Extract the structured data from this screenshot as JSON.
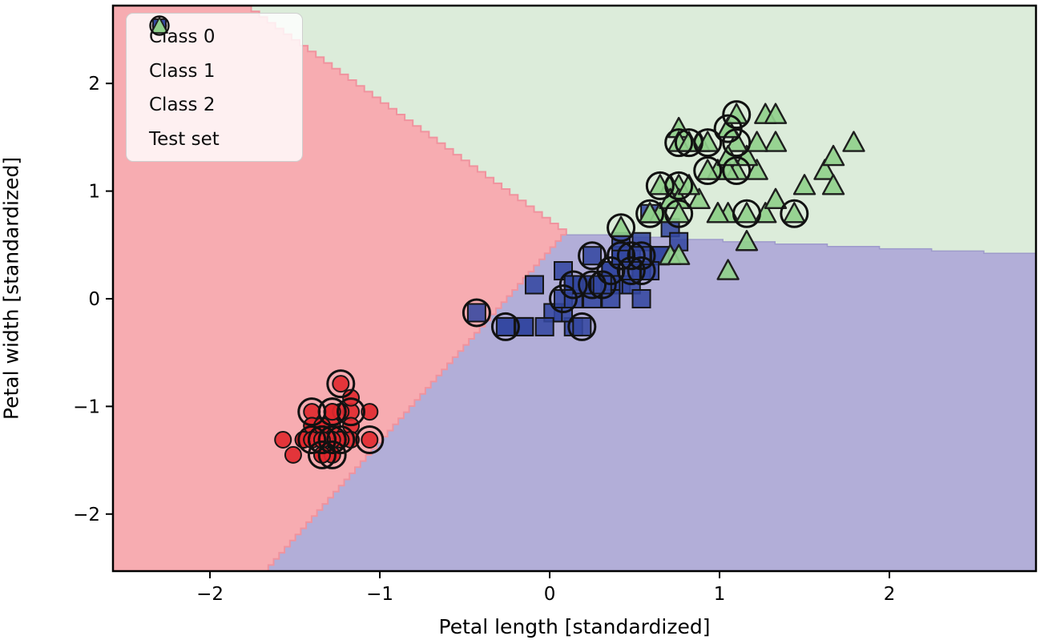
{
  "figure": {
    "xlabel": "Petal length [standardized]",
    "ylabel": "Petal width [standardized]"
  },
  "legend": {
    "items": [
      {
        "label": "Class 0",
        "marker": "circle",
        "color": "#e0282e"
      },
      {
        "label": "Class 1",
        "marker": "square",
        "color": "#3448a0"
      },
      {
        "label": "Class 2",
        "marker": "triangle",
        "color": "#90d08c"
      },
      {
        "label": "Test set",
        "marker": "open-circle",
        "color": "#111111"
      }
    ]
  },
  "chart_data": {
    "type": "scatter",
    "title": "",
    "xlabel": "Petal length [standardized]",
    "ylabel": "Petal width [standardized]",
    "xlim": [
      -2.571,
      2.863
    ],
    "ylim": [
      -2.53,
      2.723
    ],
    "xticks": [
      -2,
      -1,
      0,
      1,
      2
    ],
    "yticks": [
      -2,
      -1,
      0,
      1,
      2
    ],
    "xtick_labels": [
      "−2",
      "−1",
      "0",
      "1",
      "2"
    ],
    "ytick_labels": [
      "−2",
      "−1",
      "0",
      "1",
      "2"
    ],
    "grid": false,
    "legend_position": "upper left",
    "decision_regions": {
      "triple_point": [
        0.098,
        0.593
      ],
      "red_green_top_crossing": [
        -1.805,
        2.723
      ],
      "red_blue_bottom_crossing": [
        -1.657,
        -2.53
      ],
      "green_blue_right_crossing": [
        2.863,
        0.4
      ],
      "region_colors": {
        "class0": "#f7acb1",
        "class1": "#b2aed8",
        "class2": "#dcecda"
      },
      "edge_colors": {
        "red_edge": "#f0939e",
        "green_blue_edge": "#9e9bcb"
      }
    },
    "marker_style": {
      "class0": {
        "shape": "circle",
        "fill": "#e0282e",
        "edge": "#151515",
        "radius": 10
      },
      "class1": {
        "shape": "square",
        "fill": "#3448a0",
        "edge": "#151515",
        "half": 11
      },
      "class2": {
        "shape": "triangle",
        "fill": "#90d08c",
        "edge": "#1e1e1e",
        "half": 13
      },
      "test_ring": {
        "radius": 16.5,
        "stroke": "#111111",
        "stroke_width": 3
      }
    },
    "series": [
      {
        "name": "Class 0",
        "points": [
          [
            -1.34,
            -1.31,
            1
          ],
          [
            -1.34,
            -1.31,
            1
          ],
          [
            -1.4,
            -1.31,
            1
          ],
          [
            -1.28,
            -1.31,
            1
          ],
          [
            -1.34,
            -1.31,
            1
          ],
          [
            -1.17,
            -1.05,
            1
          ],
          [
            -1.34,
            -1.18,
            0
          ],
          [
            -1.28,
            -1.31,
            1
          ],
          [
            -1.34,
            -1.31,
            0
          ],
          [
            -1.28,
            -1.45,
            1
          ],
          [
            -1.28,
            -1.31,
            0
          ],
          [
            -1.23,
            -1.31,
            1
          ],
          [
            -1.34,
            -1.45,
            1
          ],
          [
            -1.51,
            -1.45,
            0
          ],
          [
            -1.45,
            -1.31,
            0
          ],
          [
            -1.28,
            -1.05,
            1
          ],
          [
            -1.4,
            -1.05,
            1
          ],
          [
            -1.34,
            -1.18,
            0
          ],
          [
            -1.17,
            -1.18,
            0
          ],
          [
            -1.28,
            -1.18,
            0
          ],
          [
            -1.17,
            -1.31,
            0
          ],
          [
            -1.28,
            -1.05,
            1
          ],
          [
            -1.57,
            -1.31,
            0
          ],
          [
            -1.17,
            -0.92,
            0
          ],
          [
            -1.06,
            -1.31,
            1
          ],
          [
            -1.23,
            -1.31,
            0
          ],
          [
            -1.23,
            -1.05,
            0
          ],
          [
            -1.28,
            -1.31,
            0
          ],
          [
            -1.34,
            -1.31,
            0
          ],
          [
            -1.23,
            -1.31,
            0
          ],
          [
            -1.23,
            -1.31,
            0
          ],
          [
            -1.28,
            -1.05,
            0
          ],
          [
            -1.28,
            -1.45,
            0
          ],
          [
            -1.34,
            -1.31,
            0
          ],
          [
            -1.28,
            -1.31,
            0
          ],
          [
            -1.45,
            -1.31,
            0
          ],
          [
            -1.4,
            -1.31,
            0
          ],
          [
            -1.34,
            -1.45,
            0
          ],
          [
            -1.4,
            -1.31,
            0
          ],
          [
            -1.28,
            -1.31,
            0
          ],
          [
            -1.4,
            -1.18,
            0
          ],
          [
            -1.4,
            -1.18,
            0
          ],
          [
            -1.4,
            -1.31,
            0
          ],
          [
            -1.23,
            -0.79,
            1
          ],
          [
            -1.06,
            -1.05,
            0
          ],
          [
            -1.34,
            -1.18,
            0
          ],
          [
            -1.23,
            -1.31,
            0
          ],
          [
            -1.34,
            -1.31,
            0
          ],
          [
            -1.28,
            -1.31,
            0
          ],
          [
            -1.34,
            -1.31,
            0
          ]
        ]
      },
      {
        "name": "Class 1",
        "points": [
          [
            0.54,
            0.26,
            1
          ],
          [
            0.42,
            0.4,
            1
          ],
          [
            0.65,
            0.4,
            0
          ],
          [
            0.14,
            0.13,
            1
          ],
          [
            0.48,
            0.4,
            1
          ],
          [
            0.42,
            0.13,
            0
          ],
          [
            0.54,
            0.53,
            0
          ],
          [
            -0.26,
            -0.26,
            1
          ],
          [
            0.48,
            0.13,
            0
          ],
          [
            0.08,
            0.26,
            0
          ],
          [
            -0.15,
            -0.26,
            0
          ],
          [
            0.25,
            0.4,
            1
          ],
          [
            0.14,
            -0.26,
            0
          ],
          [
            0.54,
            0.26,
            0
          ],
          [
            -0.09,
            0.13,
            0
          ],
          [
            0.36,
            0.26,
            0
          ],
          [
            0.42,
            0.4,
            1
          ],
          [
            0.19,
            -0.26,
            1
          ],
          [
            0.42,
            0.4,
            0
          ],
          [
            0.08,
            -0.13,
            0
          ],
          [
            0.59,
            0.79,
            0
          ],
          [
            0.14,
            0.13,
            0
          ],
          [
            0.65,
            0.4,
            0
          ],
          [
            0.54,
            0.0,
            0
          ],
          [
            0.31,
            0.13,
            1
          ],
          [
            0.36,
            0.26,
            1
          ],
          [
            0.59,
            0.26,
            0
          ],
          [
            0.71,
            0.66,
            0
          ],
          [
            0.42,
            0.4,
            0
          ],
          [
            -0.15,
            -0.26,
            0
          ],
          [
            0.02,
            -0.13,
            0
          ],
          [
            -0.03,
            -0.26,
            0
          ],
          [
            0.08,
            0.0,
            1
          ],
          [
            0.76,
            0.53,
            0
          ],
          [
            0.42,
            0.4,
            0
          ],
          [
            0.42,
            0.53,
            0
          ],
          [
            0.54,
            0.4,
            1
          ],
          [
            0.36,
            0.13,
            0
          ],
          [
            0.19,
            0.13,
            0
          ],
          [
            0.14,
            0.13,
            0
          ],
          [
            0.36,
            0.0,
            0
          ],
          [
            0.48,
            0.26,
            1
          ],
          [
            0.14,
            0.0,
            0
          ],
          [
            -0.26,
            -0.26,
            0
          ],
          [
            0.25,
            0.13,
            1
          ],
          [
            0.25,
            0.0,
            0
          ],
          [
            0.25,
            0.13,
            0
          ],
          [
            0.31,
            0.13,
            0
          ],
          [
            -0.43,
            -0.13,
            1
          ],
          [
            0.19,
            0.13,
            0
          ]
        ]
      },
      {
        "name": "Class 2",
        "points": [
          [
            1.27,
            1.71,
            0
          ],
          [
            0.76,
            0.92,
            0
          ],
          [
            1.22,
            1.19,
            0
          ],
          [
            1.05,
            0.79,
            0
          ],
          [
            1.16,
            1.32,
            0
          ],
          [
            1.62,
            1.19,
            0
          ],
          [
            0.42,
            0.66,
            1
          ],
          [
            1.44,
            0.79,
            1
          ],
          [
            1.16,
            0.79,
            1
          ],
          [
            1.33,
            1.71,
            0
          ],
          [
            0.76,
            1.05,
            1
          ],
          [
            0.88,
            0.92,
            0
          ],
          [
            0.99,
            1.19,
            0
          ],
          [
            0.71,
            1.05,
            0
          ],
          [
            0.76,
            1.58,
            0
          ],
          [
            0.88,
            1.45,
            0
          ],
          [
            0.99,
            0.79,
            0
          ],
          [
            1.67,
            1.32,
            0
          ],
          [
            1.79,
            1.45,
            0
          ],
          [
            0.71,
            0.4,
            0
          ],
          [
            1.1,
            1.45,
            1
          ],
          [
            0.65,
            1.05,
            1
          ],
          [
            1.67,
            1.05,
            0
          ],
          [
            0.65,
            0.79,
            0
          ],
          [
            1.1,
            1.19,
            1
          ],
          [
            1.27,
            0.79,
            0
          ],
          [
            0.59,
            0.79,
            1
          ],
          [
            0.65,
            0.79,
            0
          ],
          [
            1.05,
            1.19,
            0
          ],
          [
            1.16,
            0.53,
            0
          ],
          [
            1.33,
            0.92,
            0
          ],
          [
            1.5,
            1.05,
            0
          ],
          [
            1.05,
            1.32,
            0
          ],
          [
            0.76,
            0.4,
            0
          ],
          [
            1.05,
            0.26,
            0
          ],
          [
            1.33,
            1.45,
            0
          ],
          [
            1.05,
            1.58,
            1
          ],
          [
            0.99,
            0.79,
            0
          ],
          [
            0.59,
            0.79,
            0
          ],
          [
            0.93,
            1.19,
            1
          ],
          [
            1.05,
            1.58,
            0
          ],
          [
            0.76,
            1.45,
            1
          ],
          [
            0.76,
            0.92,
            0
          ],
          [
            1.22,
            1.45,
            0
          ],
          [
            1.1,
            1.71,
            1
          ],
          [
            0.82,
            1.45,
            1
          ],
          [
            0.71,
            0.92,
            0
          ],
          [
            0.82,
            1.05,
            0
          ],
          [
            0.93,
            1.45,
            1
          ],
          [
            0.76,
            0.79,
            1
          ]
        ]
      }
    ]
  }
}
